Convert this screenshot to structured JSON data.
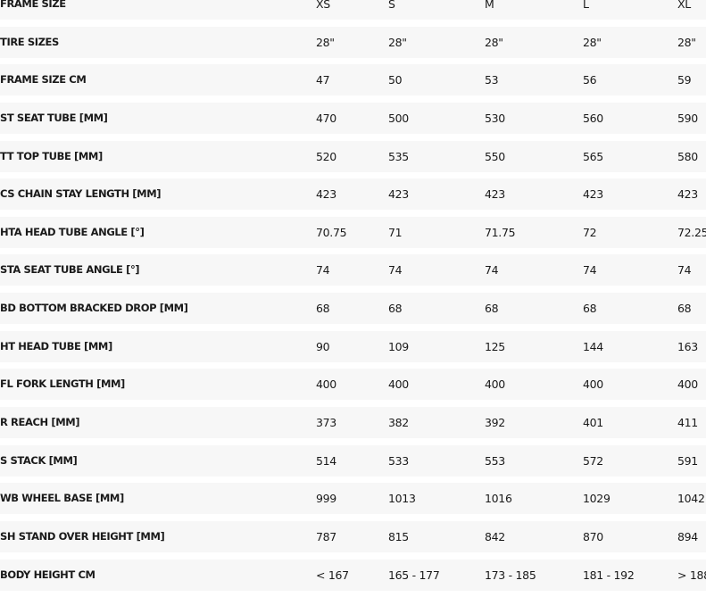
{
  "table": {
    "rows": [
      {
        "label": "FRAME SIZE",
        "values": [
          "XS",
          "S",
          "M",
          "L",
          "XL"
        ]
      },
      {
        "label": "TIRE SIZES",
        "values": [
          "28\"",
          "28\"",
          "28\"",
          "28\"",
          "28\""
        ]
      },
      {
        "label": "FRAME SIZE CM",
        "values": [
          "47",
          "50",
          "53",
          "56",
          "59"
        ]
      },
      {
        "label": "ST SEAT TUBE [MM]",
        "values": [
          "470",
          "500",
          "530",
          "560",
          "590"
        ]
      },
      {
        "label": "TT TOP TUBE [MM]",
        "values": [
          "520",
          "535",
          "550",
          "565",
          "580"
        ]
      },
      {
        "label": "CS CHAIN STAY LENGTH [MM]",
        "values": [
          "423",
          "423",
          "423",
          "423",
          "423"
        ]
      },
      {
        "label": "HTA HEAD TUBE ANGLE [°]",
        "values": [
          "70.75",
          "71",
          "71.75",
          "72",
          "72.25"
        ]
      },
      {
        "label": "STA SEAT TUBE ANGLE [°]",
        "values": [
          "74",
          "74",
          "74",
          "74",
          "74"
        ]
      },
      {
        "label": "BD BOTTOM BRACKED DROP [MM]",
        "values": [
          "68",
          "68",
          "68",
          "68",
          "68"
        ]
      },
      {
        "label": "HT HEAD TUBE [MM]",
        "values": [
          "90",
          "109",
          "125",
          "144",
          "163"
        ]
      },
      {
        "label": "FL FORK LENGTH [MM]",
        "values": [
          "400",
          "400",
          "400",
          "400",
          "400"
        ]
      },
      {
        "label": "R REACH [MM]",
        "values": [
          "373",
          "382",
          "392",
          "401",
          "411"
        ]
      },
      {
        "label": "S STACK [MM]",
        "values": [
          "514",
          "533",
          "553",
          "572",
          "591"
        ]
      },
      {
        "label": "WB WHEEL BASE [MM]",
        "values": [
          "999",
          "1013",
          "1016",
          "1029",
          "1042"
        ]
      },
      {
        "label": "SH STAND OVER HEIGHT [MM]",
        "values": [
          "787",
          "815",
          "842",
          "870",
          "894"
        ]
      },
      {
        "label": "BODY HEIGHT CM",
        "values": [
          "< 167",
          "165 - 177",
          "173 - 185",
          "181 - 192",
          "> 188"
        ]
      }
    ]
  }
}
